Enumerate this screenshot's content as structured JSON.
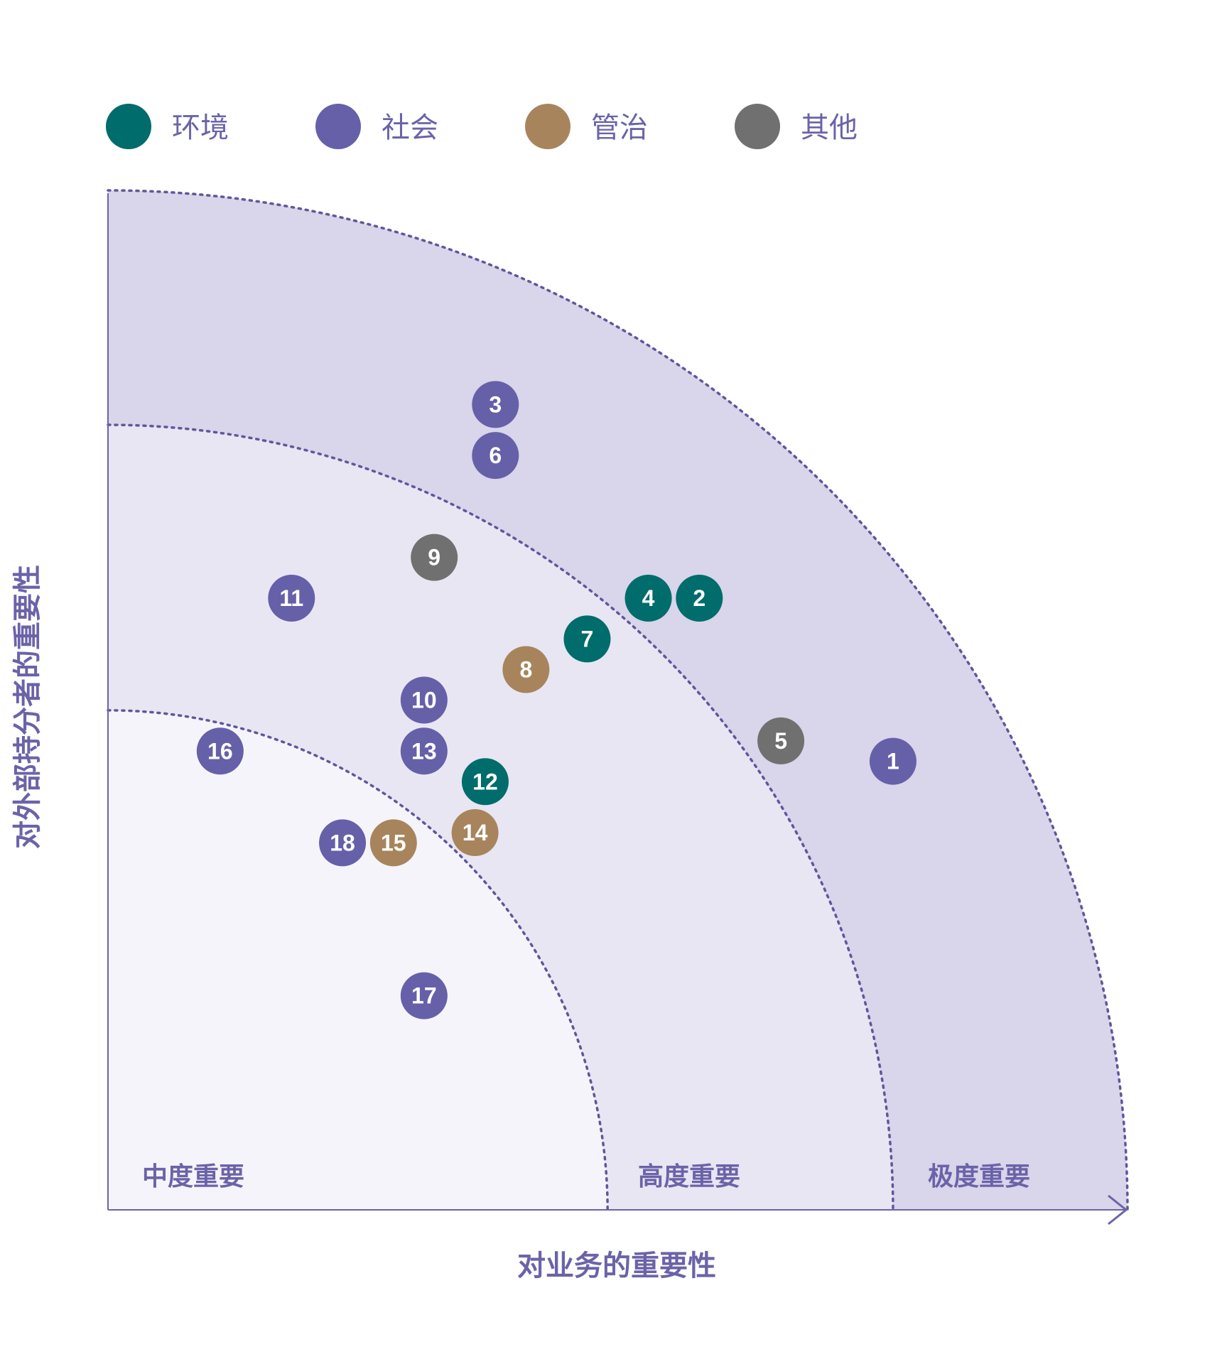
{
  "chart_data": {
    "type": "scatter",
    "title": "",
    "xlabel": "对业务的重要性",
    "ylabel": "对外部持分者的重要性",
    "legend_position": "top",
    "categories": [
      {
        "key": "env",
        "label": "环境",
        "color": "#006c6b"
      },
      {
        "key": "soc",
        "label": "社会",
        "color": "#6660a9"
      },
      {
        "key": "gov",
        "label": "管治",
        "color": "#a8845d"
      },
      {
        "key": "oth",
        "label": "其他",
        "color": "#707070"
      }
    ],
    "zones": [
      {
        "label": "中度重要",
        "radius": 0.49
      },
      {
        "label": "高度重要",
        "radius": 0.77
      },
      {
        "label": "极度重要",
        "radius": 1.0
      }
    ],
    "points": [
      {
        "id": "1",
        "cat": "soc",
        "x": 0.77,
        "y": 0.44
      },
      {
        "id": "2",
        "cat": "env",
        "x": 0.58,
        "y": 0.6
      },
      {
        "id": "3",
        "cat": "soc",
        "x": 0.38,
        "y": 0.79
      },
      {
        "id": "4",
        "cat": "env",
        "x": 0.53,
        "y": 0.6
      },
      {
        "id": "5",
        "cat": "oth",
        "x": 0.66,
        "y": 0.46
      },
      {
        "id": "6",
        "cat": "soc",
        "x": 0.38,
        "y": 0.74
      },
      {
        "id": "7",
        "cat": "env",
        "x": 0.47,
        "y": 0.56
      },
      {
        "id": "8",
        "cat": "gov",
        "x": 0.41,
        "y": 0.53
      },
      {
        "id": "9",
        "cat": "oth",
        "x": 0.32,
        "y": 0.64
      },
      {
        "id": "10",
        "cat": "soc",
        "x": 0.31,
        "y": 0.5
      },
      {
        "id": "11",
        "cat": "soc",
        "x": 0.18,
        "y": 0.6
      },
      {
        "id": "12",
        "cat": "env",
        "x": 0.37,
        "y": 0.42
      },
      {
        "id": "13",
        "cat": "soc",
        "x": 0.31,
        "y": 0.45
      },
      {
        "id": "14",
        "cat": "gov",
        "x": 0.36,
        "y": 0.37
      },
      {
        "id": "15",
        "cat": "gov",
        "x": 0.28,
        "y": 0.36
      },
      {
        "id": "16",
        "cat": "soc",
        "x": 0.11,
        "y": 0.45
      },
      {
        "id": "17",
        "cat": "soc",
        "x": 0.31,
        "y": 0.21
      },
      {
        "id": "18",
        "cat": "soc",
        "x": 0.23,
        "y": 0.36
      }
    ]
  }
}
